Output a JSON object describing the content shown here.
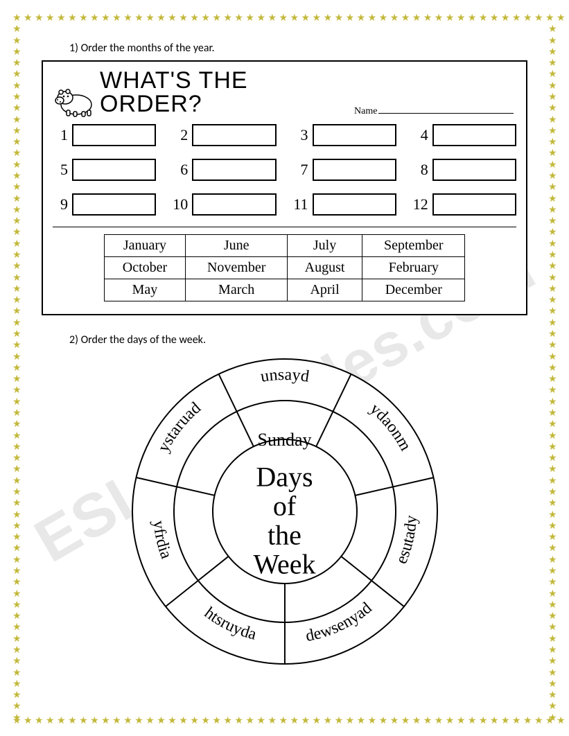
{
  "border": {
    "star_color": "#c3b83a",
    "star_char": "★",
    "count_h": 50,
    "count_v": 64
  },
  "watermark": "ESLprintables.com",
  "section1": {
    "question_label": "1)   Order the months of the year.",
    "title": "What's the ORDER?",
    "name_label": "Name",
    "num_boxes": 12,
    "months_table": [
      [
        "January",
        "June",
        "July",
        "September"
      ],
      [
        "October",
        "November",
        "August",
        "February"
      ],
      [
        "May",
        "March",
        "April",
        "December"
      ]
    ]
  },
  "section2": {
    "question_label": "2)   Order the days of the week.",
    "center_title": "Days of the Week",
    "inner_answer": "Sunday",
    "outer_scrambled": [
      "unsayd",
      "ydaonm",
      "esutady",
      "dewsenyad",
      "htsruyda",
      "yfrdia",
      "ystaruad"
    ],
    "wheel": {
      "stroke": "#000000",
      "stroke_width": 2,
      "r_outer": 220,
      "r_mid": 160,
      "r_inner": 104,
      "segment_count": 7,
      "start_angle_deg": -115.7,
      "font_size": 24
    }
  }
}
